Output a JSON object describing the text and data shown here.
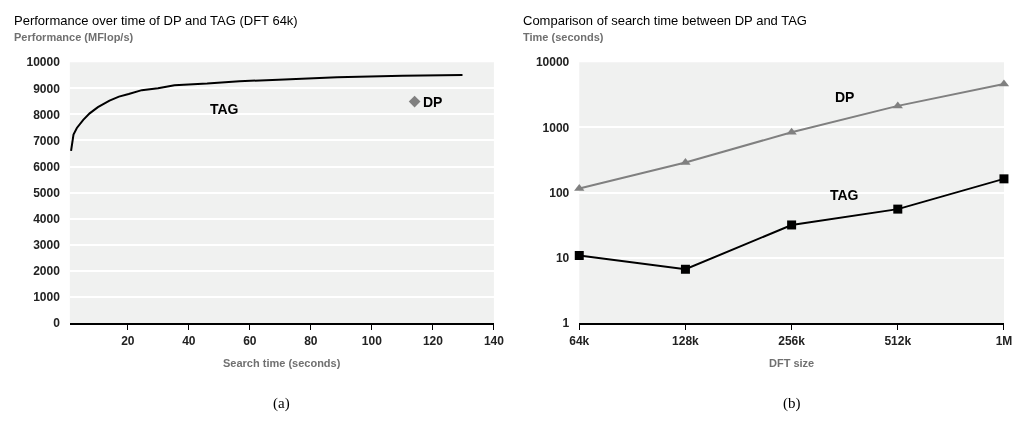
{
  "chart_data": [
    {
      "type": "line",
      "title": "Performance over time of DP and TAG (DFT 64k)",
      "ylabel": "Performance (MFlop/s)",
      "xlabel": "Search time (seconds)",
      "annotations": [
        "(a)"
      ],
      "xlim": [
        1,
        140
      ],
      "xticks": [
        20,
        40,
        60,
        80,
        100,
        120,
        140
      ],
      "ylim": [
        0,
        10000
      ],
      "yticks": [
        0,
        1000,
        2000,
        3000,
        4000,
        5000,
        6000,
        7000,
        8000,
        9000,
        10000
      ],
      "grid": "y",
      "series": [
        {
          "name": "TAG",
          "type": "line",
          "color": "#000000",
          "marker": "none",
          "x": [
            1.4,
            2.2,
            3.3,
            5.4,
            7.5,
            10.2,
            14,
            17.1,
            20.3,
            24.6,
            29.9,
            35.3,
            46,
            56.6,
            69.4,
            88.6,
            110,
            129.7
          ],
          "values": [
            6600,
            7230,
            7480,
            7790,
            8040,
            8280,
            8530,
            8680,
            8780,
            8930,
            9000,
            9120,
            9180,
            9270,
            9330,
            9420,
            9480,
            9510
          ]
        },
        {
          "name": "DP",
          "type": "scatter",
          "color": "#808080",
          "marker": "diamond",
          "x": [
            114
          ],
          "values": [
            8490
          ]
        }
      ]
    },
    {
      "type": "line",
      "title": "Comparison of search time between DP and TAG",
      "ylabel": "Time (seconds)",
      "xlabel": "DFT size",
      "annotations": [
        "(b)"
      ],
      "categories": [
        "64k",
        "128k",
        "256k",
        "512k",
        "1M"
      ],
      "log": true,
      "ylim": [
        1,
        10000
      ],
      "yticks": [
        1,
        10,
        100,
        1000,
        10000
      ],
      "grid": "y",
      "series": [
        {
          "name": "DP",
          "color": "#808080",
          "marker": "triangle",
          "values": [
            116,
            290,
            843,
            2140,
            4640
          ]
        },
        {
          "name": "TAG",
          "color": "#000000",
          "marker": "square",
          "values": [
            10.9,
            6.7,
            32,
            56,
            163
          ]
        }
      ]
    }
  ]
}
